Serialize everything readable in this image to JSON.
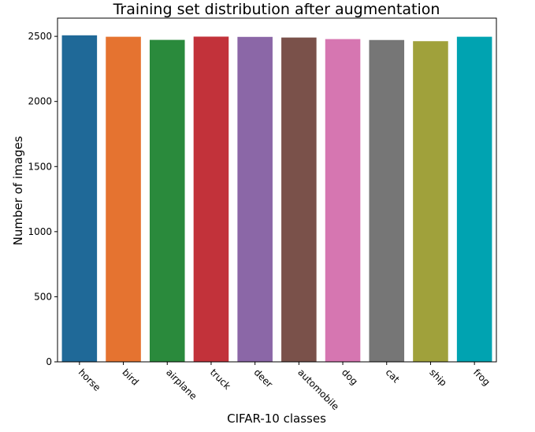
{
  "chart_data": {
    "type": "bar",
    "title": "Training set distribution after augmentation",
    "xlabel": "CIFAR-10 classes",
    "ylabel": "Number of images",
    "categories": [
      "horse",
      "bird",
      "airplane",
      "truck",
      "deer",
      "automobile",
      "dog",
      "cat",
      "ship",
      "frog"
    ],
    "values": [
      2508,
      2497,
      2473,
      2498,
      2496,
      2491,
      2479,
      2472,
      2463,
      2497
    ],
    "colors": [
      "#1f6998",
      "#e57330",
      "#2a8a3c",
      "#c2323a",
      "#8b67a7",
      "#7a514a",
      "#d676b1",
      "#767676",
      "#a0a13b",
      "#00a3b1"
    ],
    "ylim": [
      0,
      2640
    ],
    "yticks": [
      0,
      500,
      1000,
      1500,
      2000,
      2500
    ],
    "grid": false,
    "legend": "none",
    "xtick_rotation": -45
  }
}
